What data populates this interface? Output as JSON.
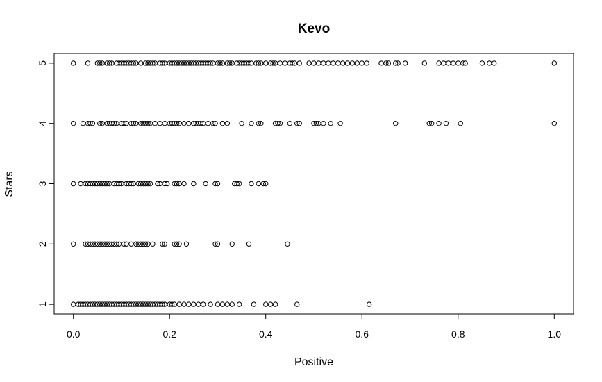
{
  "chart_data": {
    "type": "scatter",
    "title": "Kevo",
    "xlabel": "Positive",
    "ylabel": "Stars",
    "xlim": [
      -0.04,
      1.04
    ],
    "ylim": [
      0.84,
      5.16
    ],
    "xticks": [
      0.0,
      0.2,
      0.4,
      0.6,
      0.8,
      1.0
    ],
    "xtick_labels": [
      "0.0",
      "0.2",
      "0.4",
      "0.6",
      "0.8",
      "1.0"
    ],
    "yticks": [
      1,
      2,
      3,
      4,
      5
    ],
    "ytick_labels": [
      "1",
      "2",
      "3",
      "4",
      "5"
    ],
    "grid": false,
    "marker": "open-circle",
    "series": [
      {
        "y": 5,
        "x": [
          0.0,
          0.03,
          0.05,
          0.055,
          0.06,
          0.07,
          0.075,
          0.08,
          0.09,
          0.095,
          0.1,
          0.105,
          0.11,
          0.115,
          0.12,
          0.125,
          0.13,
          0.14,
          0.15,
          0.155,
          0.16,
          0.165,
          0.17,
          0.18,
          0.185,
          0.19,
          0.2,
          0.205,
          0.21,
          0.215,
          0.22,
          0.225,
          0.23,
          0.235,
          0.24,
          0.245,
          0.25,
          0.255,
          0.26,
          0.265,
          0.27,
          0.275,
          0.28,
          0.285,
          0.29,
          0.3,
          0.305,
          0.31,
          0.32,
          0.325,
          0.33,
          0.34,
          0.345,
          0.35,
          0.355,
          0.36,
          0.365,
          0.37,
          0.38,
          0.385,
          0.39,
          0.4,
          0.41,
          0.415,
          0.42,
          0.43,
          0.44,
          0.45,
          0.455,
          0.46,
          0.47,
          0.49,
          0.5,
          0.51,
          0.52,
          0.53,
          0.54,
          0.55,
          0.56,
          0.57,
          0.58,
          0.59,
          0.6,
          0.61,
          0.64,
          0.65,
          0.655,
          0.67,
          0.675,
          0.69,
          0.73,
          0.76,
          0.77,
          0.78,
          0.79,
          0.8,
          0.81,
          0.815,
          0.85,
          0.865,
          0.875,
          1.0
        ]
      },
      {
        "y": 4,
        "x": [
          0.0,
          0.02,
          0.03,
          0.035,
          0.04,
          0.055,
          0.06,
          0.07,
          0.075,
          0.08,
          0.085,
          0.09,
          0.1,
          0.105,
          0.11,
          0.12,
          0.125,
          0.13,
          0.14,
          0.145,
          0.15,
          0.155,
          0.16,
          0.17,
          0.18,
          0.19,
          0.2,
          0.205,
          0.21,
          0.215,
          0.22,
          0.23,
          0.24,
          0.25,
          0.255,
          0.26,
          0.265,
          0.27,
          0.28,
          0.29,
          0.295,
          0.31,
          0.32,
          0.35,
          0.37,
          0.385,
          0.39,
          0.42,
          0.425,
          0.43,
          0.45,
          0.465,
          0.47,
          0.5,
          0.505,
          0.51,
          0.52,
          0.535,
          0.555,
          0.67,
          0.74,
          0.745,
          0.76,
          0.775,
          0.805,
          1.0
        ]
      },
      {
        "y": 3,
        "x": [
          0.0,
          0.015,
          0.025,
          0.03,
          0.035,
          0.04,
          0.045,
          0.05,
          0.055,
          0.06,
          0.065,
          0.07,
          0.075,
          0.085,
          0.09,
          0.095,
          0.1,
          0.11,
          0.115,
          0.12,
          0.125,
          0.135,
          0.14,
          0.145,
          0.15,
          0.155,
          0.16,
          0.175,
          0.18,
          0.19,
          0.195,
          0.21,
          0.215,
          0.22,
          0.23,
          0.25,
          0.275,
          0.295,
          0.3,
          0.335,
          0.34,
          0.345,
          0.37,
          0.385,
          0.395,
          0.4
        ]
      },
      {
        "y": 2,
        "x": [
          0.0,
          0.025,
          0.03,
          0.035,
          0.04,
          0.045,
          0.05,
          0.055,
          0.06,
          0.065,
          0.07,
          0.075,
          0.08,
          0.085,
          0.09,
          0.095,
          0.105,
          0.11,
          0.12,
          0.13,
          0.135,
          0.14,
          0.145,
          0.15,
          0.155,
          0.165,
          0.185,
          0.19,
          0.21,
          0.215,
          0.22,
          0.235,
          0.295,
          0.3,
          0.33,
          0.365,
          0.445
        ]
      },
      {
        "y": 1,
        "x": [
          0.0,
          0.01,
          0.015,
          0.02,
          0.025,
          0.03,
          0.035,
          0.04,
          0.045,
          0.05,
          0.055,
          0.06,
          0.065,
          0.07,
          0.075,
          0.08,
          0.085,
          0.09,
          0.095,
          0.1,
          0.105,
          0.11,
          0.115,
          0.12,
          0.125,
          0.13,
          0.135,
          0.14,
          0.145,
          0.15,
          0.155,
          0.16,
          0.165,
          0.17,
          0.175,
          0.18,
          0.185,
          0.19,
          0.2,
          0.205,
          0.21,
          0.22,
          0.23,
          0.24,
          0.25,
          0.26,
          0.27,
          0.285,
          0.3,
          0.31,
          0.32,
          0.33,
          0.345,
          0.375,
          0.4,
          0.41,
          0.42,
          0.465,
          0.615
        ]
      }
    ]
  }
}
